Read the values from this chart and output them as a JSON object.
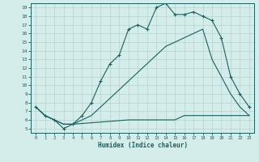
{
  "xlabel": "Humidex (Indice chaleur)",
  "xlim": [
    -0.5,
    23.5
  ],
  "ylim": [
    4.5,
    19.5
  ],
  "xticks": [
    0,
    1,
    2,
    3,
    4,
    5,
    6,
    7,
    8,
    9,
    10,
    11,
    12,
    13,
    14,
    15,
    16,
    17,
    18,
    19,
    20,
    21,
    22,
    23
  ],
  "yticks": [
    5,
    6,
    7,
    8,
    9,
    10,
    11,
    12,
    13,
    14,
    15,
    16,
    17,
    18,
    19
  ],
  "bg_color": "#d4ecea",
  "grid_color": "#b2d4d0",
  "line_color": "#1a6060",
  "line1_x": [
    0,
    1,
    2,
    3,
    4,
    5,
    6,
    7,
    8,
    9,
    10,
    11,
    12,
    13,
    14,
    15,
    16,
    17,
    18,
    19,
    20,
    21,
    22,
    23
  ],
  "line1_y": [
    7.5,
    6.5,
    6.0,
    5.0,
    5.5,
    6.5,
    8.0,
    10.5,
    12.5,
    13.5,
    16.5,
    17.0,
    16.5,
    19.0,
    19.5,
    18.2,
    18.2,
    18.5,
    18.0,
    17.5,
    15.5,
    11.0,
    9.0,
    7.5
  ],
  "line2_x": [
    0,
    1,
    2,
    3,
    4,
    10,
    11,
    12,
    13,
    14,
    15,
    16,
    17,
    18,
    19,
    20,
    21,
    22,
    23
  ],
  "line2_y": [
    7.5,
    6.5,
    6.0,
    5.5,
    5.5,
    6.0,
    6.0,
    6.0,
    6.0,
    6.0,
    6.0,
    6.5,
    6.5,
    6.5,
    6.5,
    6.5,
    6.5,
    6.5,
    6.5
  ],
  "line3_x": [
    0,
    1,
    2,
    3,
    4,
    5,
    6,
    7,
    8,
    9,
    10,
    11,
    12,
    13,
    14,
    15,
    16,
    17,
    18,
    19,
    20,
    21,
    22,
    23
  ],
  "line3_y": [
    7.5,
    6.5,
    6.0,
    5.5,
    5.5,
    6.0,
    6.5,
    7.5,
    8.5,
    9.5,
    10.5,
    11.5,
    12.5,
    13.5,
    14.5,
    15.0,
    15.5,
    16.0,
    16.5,
    13.0,
    11.0,
    9.0,
    7.5,
    6.5
  ]
}
